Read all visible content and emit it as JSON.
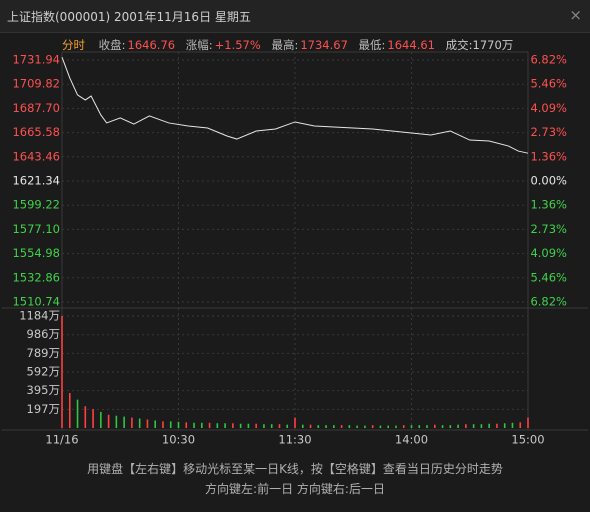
{
  "header": {
    "title": "上证指数(000001) 2001年11月16日 星期五",
    "close": "×"
  },
  "info": {
    "mode": "分时",
    "items": [
      {
        "label": "收盘:",
        "value": "1646.76"
      },
      {
        "label": "涨幅:",
        "value": "+1.57%"
      },
      {
        "label": "最高:",
        "value": "1734.67"
      },
      {
        "label": "最低:",
        "value": "1644.61"
      }
    ],
    "volume": "成交:1770万"
  },
  "footer": [
    "用键盘【左右键】移动光标至某一日K线，按【空格键】查看当日历史分时走势",
    "方向键左:前一日   方向键右:后一日"
  ],
  "chart_data": [
    {
      "type": "line",
      "color": "#e6e6e6",
      "grid": true,
      "x": [
        0,
        4,
        8,
        12,
        15,
        20,
        23,
        30,
        37,
        45,
        55,
        65,
        75,
        85,
        90,
        100,
        110,
        120,
        130,
        140,
        150,
        160,
        170,
        180,
        190,
        200,
        210,
        220,
        230,
        235,
        240
      ],
      "values": [
        1734.5,
        1715.5,
        1700,
        1695.4,
        1699,
        1681.7,
        1674.4,
        1679,
        1673.4,
        1680.8,
        1674.4,
        1671.6,
        1669.8,
        1662.5,
        1659.7,
        1667,
        1668.9,
        1675.3,
        1671.6,
        1670.7,
        1669.8,
        1668.9,
        1667,
        1665.2,
        1663.4,
        1667,
        1658.8,
        1657.9,
        1653.3,
        1648.7,
        1646.76
      ],
      "ylim": [
        1510.74,
        1731.94
      ],
      "yticks": [
        1731.94,
        1709.82,
        {
          "value": 1687.7,
          "label": "1687.70"
        },
        1665.58,
        1643.46,
        1621.34,
        1599.22,
        {
          "value": 1577.1,
          "label": "1577.10"
        },
        1554.98,
        1532.86,
        1510.74
      ],
      "y2lim": [
        -6.82,
        6.82
      ],
      "y2ticks": [
        {
          "value": 6.82,
          "label": "6.82%"
        },
        {
          "value": 5.46,
          "label": "5.46%"
        },
        {
          "value": 4.09,
          "label": "4.09%"
        },
        {
          "value": 2.73,
          "label": "2.73%"
        },
        {
          "value": 1.36,
          "label": "1.36%"
        },
        {
          "value": 0,
          "label": "0.00%"
        },
        {
          "value": -1.36,
          "label": "1.36%"
        },
        {
          "value": -2.73,
          "label": "2.73%"
        },
        {
          "value": -4.09,
          "label": "4.09%"
        },
        {
          "value": -5.46,
          "label": "5.46%"
        },
        {
          "value": -6.82,
          "label": "6.82%"
        }
      ]
    },
    {
      "type": "bar",
      "grid": true,
      "xlim": [
        0,
        240
      ],
      "xticks": [
        {
          "value": 0,
          "label": "11/16"
        },
        {
          "value": 60,
          "label": "10:30"
        },
        {
          "value": 120,
          "label": "11:30"
        },
        {
          "value": 180,
          "label": "14:00"
        },
        {
          "value": 240,
          "label": "15:00"
        }
      ],
      "ylim": [
        0,
        1184
      ],
      "yticks": [
        {
          "value": 1184,
          "label": "1184万"
        },
        {
          "value": 986,
          "label": "986万"
        },
        {
          "value": 789,
          "label": "789万"
        },
        {
          "value": 592,
          "label": "592万"
        },
        {
          "value": 395,
          "label": "395万"
        },
        {
          "value": 197,
          "label": "197万"
        }
      ],
      "series": [
        {
          "color": "#ff4040",
          "x": [
            0,
            4,
            12,
            16,
            24,
            36,
            44,
            52,
            64,
            76,
            88,
            100,
            112,
            120,
            128,
            144,
            160,
            176,
            192,
            208,
            224,
            236,
            240
          ],
          "values": [
            1184,
            370,
            230,
            200,
            140,
            110,
            90,
            70,
            60,
            55,
            50,
            45,
            40,
            110,
            35,
            30,
            30,
            30,
            35,
            40,
            45,
            60,
            110
          ]
        },
        {
          "color": "#2ec840",
          "x": [
            8,
            20,
            28,
            32,
            40,
            48,
            56,
            60,
            68,
            72,
            80,
            84,
            92,
            96,
            104,
            108,
            116,
            124,
            132,
            136,
            140,
            148,
            152,
            156,
            164,
            168,
            172,
            180,
            184,
            188,
            196,
            200,
            204,
            212,
            216,
            220,
            228,
            232
          ],
          "values": [
            300,
            170,
            130,
            120,
            100,
            80,
            70,
            65,
            55,
            55,
            50,
            50,
            45,
            45,
            40,
            40,
            35,
            35,
            30,
            30,
            30,
            30,
            25,
            25,
            25,
            25,
            25,
            30,
            30,
            30,
            30,
            30,
            35,
            40,
            40,
            45,
            50,
            55
          ]
        }
      ]
    }
  ]
}
